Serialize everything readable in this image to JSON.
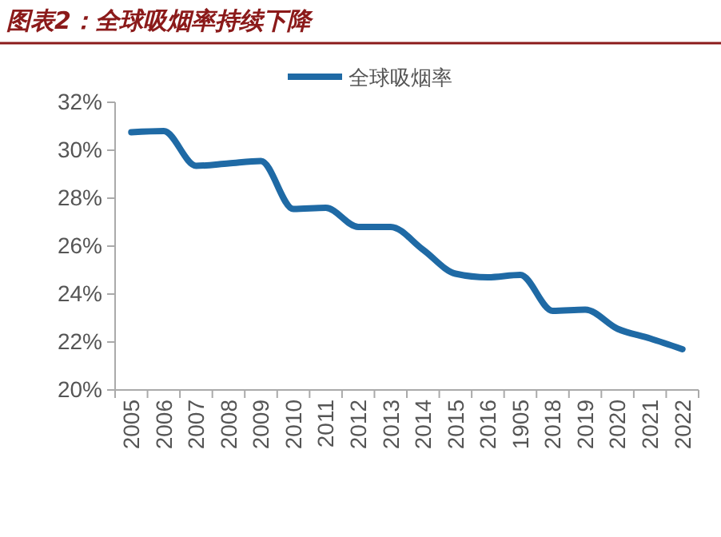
{
  "chart_data": {
    "type": "line",
    "title": "图表2：全球吸烟率持续下降",
    "categories": [
      "2005",
      "2006",
      "2007",
      "2008",
      "2009",
      "2010",
      "2011",
      "2012",
      "2013",
      "2014",
      "2015",
      "2016",
      "1905",
      "2018",
      "2019",
      "2020",
      "2021",
      "2022"
    ],
    "series": [
      {
        "name": "全球吸烟率",
        "color": "#1f6aa5",
        "values": [
          30.75,
          30.8,
          29.35,
          29.45,
          29.55,
          27.55,
          27.6,
          26.8,
          26.8,
          25.85,
          24.85,
          24.7,
          24.8,
          23.3,
          23.35,
          22.55,
          22.15,
          21.7
        ]
      }
    ],
    "ylim": [
      20,
      32
    ],
    "yticks": [
      {
        "value": 20,
        "label": "20%"
      },
      {
        "value": 22,
        "label": "22%"
      },
      {
        "value": 24,
        "label": "24%"
      },
      {
        "value": 26,
        "label": "26%"
      },
      {
        "value": 28,
        "label": "28%"
      },
      {
        "value": 30,
        "label": "30%"
      },
      {
        "value": 32,
        "label": "32%"
      }
    ],
    "legend": "top",
    "grid": false,
    "marker": "none",
    "line_style": "solid"
  }
}
